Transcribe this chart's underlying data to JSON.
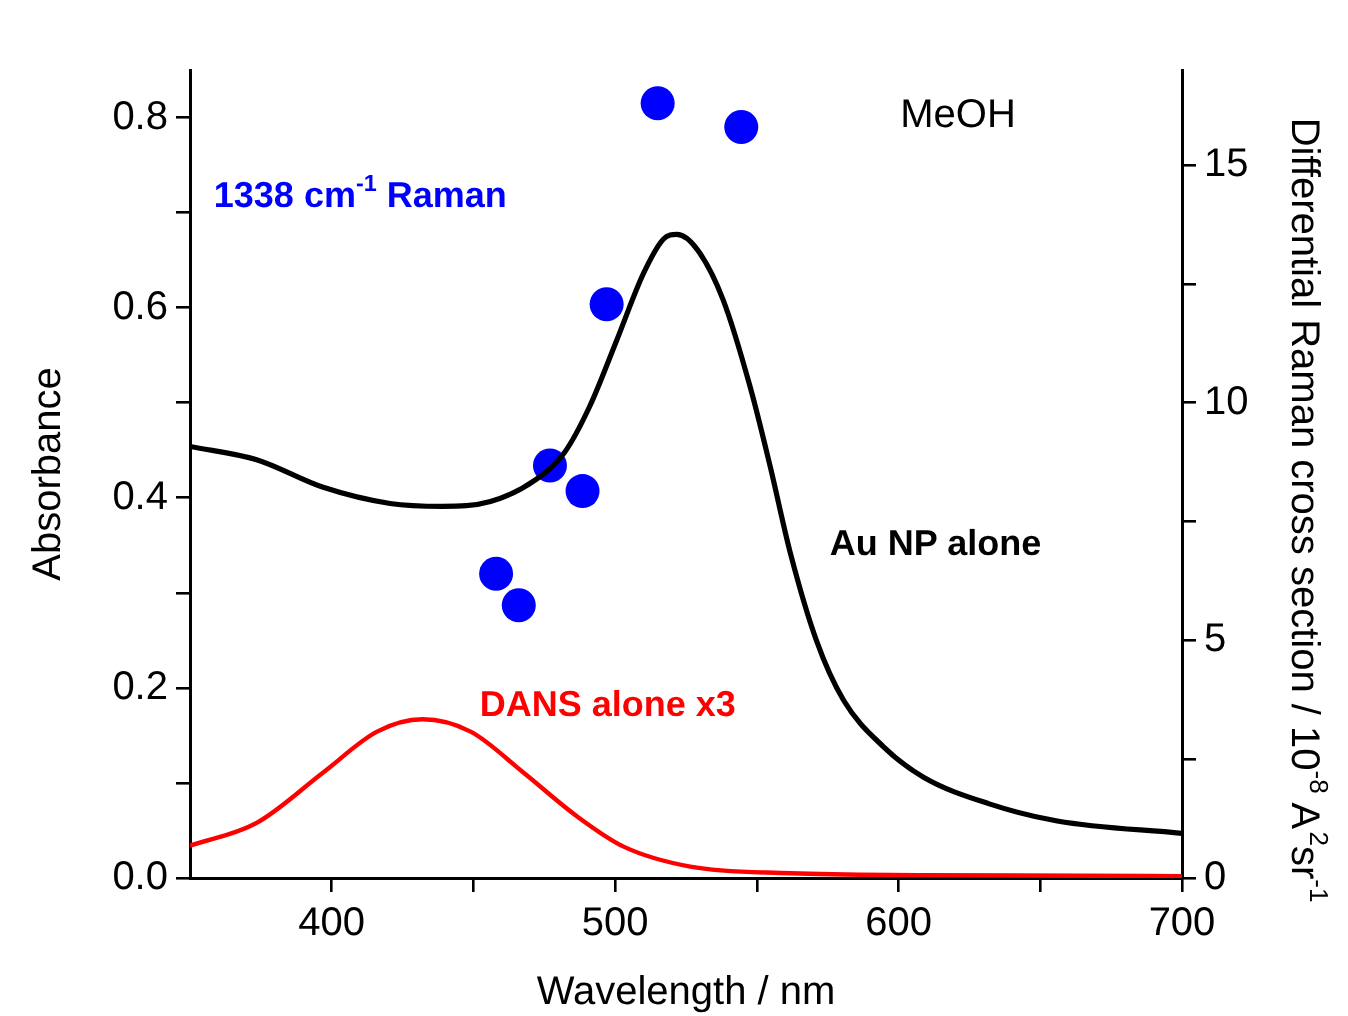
{
  "chart_data": {
    "type": "line",
    "xlabel": "Wavelength / nm",
    "ylabel": "Absorbance",
    "y2label": "Differential Raman cross section / 10$^{-8}$ A$^{2}$sr$^{-1}$",
    "annotations": [
      "MeOH"
    ],
    "xlim": [
      350,
      700
    ],
    "xticks": [
      400,
      {
        "value": 450,
        "label": null
      },
      500,
      {
        "value": 550,
        "label": null
      },
      600,
      {
        "value": 650,
        "label": null
      },
      700
    ],
    "ylim": [
      0,
      0.85
    ],
    "yticks": [
      {
        "value": 0,
        "label": "0.0"
      },
      {
        "value": 0.1,
        "label": null
      },
      0.2,
      {
        "value": 0.3,
        "label": null
      },
      0.4,
      {
        "value": 0.5,
        "label": null
      },
      0.6,
      {
        "value": 0.7,
        "label": null
      },
      0.8
    ],
    "y2lim": [
      0,
      17
    ],
    "y2ticks": [
      0,
      {
        "value": 2.5,
        "label": null
      },
      5,
      {
        "value": 7.5,
        "label": null
      },
      10,
      {
        "value": 12.5,
        "label": null
      },
      15
    ],
    "grid": false,
    "legend": false,
    "series": [
      {
        "name": "Au NP alone",
        "type": "line",
        "color": "#000000",
        "line_style": "solid",
        "x": [
          350,
          373.5,
          397,
          420.6,
          439,
          456,
          472,
          482,
          491,
          500.6,
          510,
          517,
          521.8,
          529,
          538,
          547.6,
          554.7,
          561.8,
          571,
          580.6,
          594.7,
          608.8,
          632,
          656,
          700
        ],
        "values": [
          0.454,
          0.44,
          0.411,
          0.394,
          0.391,
          0.396,
          0.419,
          0.447,
          0.496,
          0.566,
          0.636,
          0.672,
          0.677,
          0.661,
          0.609,
          0.517,
          0.433,
          0.342,
          0.25,
          0.187,
          0.138,
          0.106,
          0.078,
          0.06,
          0.047
        ]
      },
      {
        "name": "DANS alone x3",
        "type": "line",
        "color": "#ff0000",
        "line_style": "solid",
        "x": [
          350,
          373.5,
          397,
          416,
          432,
          449,
          467.6,
          486.5,
          503,
          526.5,
          562,
          609,
          700
        ],
        "values": [
          0.034,
          0.058,
          0.111,
          0.154,
          0.167,
          0.154,
          0.111,
          0.065,
          0.033,
          0.012,
          0.005,
          0.003,
          0.002
        ]
      },
      {
        "name": "1338 cm$^{-1}$ Raman",
        "type": "scatter",
        "axis": "y2",
        "color": "#0000ff",
        "marker": "circle",
        "x": [
          458,
          466,
          477,
          488.5,
          497,
          515,
          544.5
        ],
        "values": [
          6.4,
          5.74,
          8.68,
          8.14,
          12.07,
          16.3,
          15.8
        ]
      }
    ]
  }
}
